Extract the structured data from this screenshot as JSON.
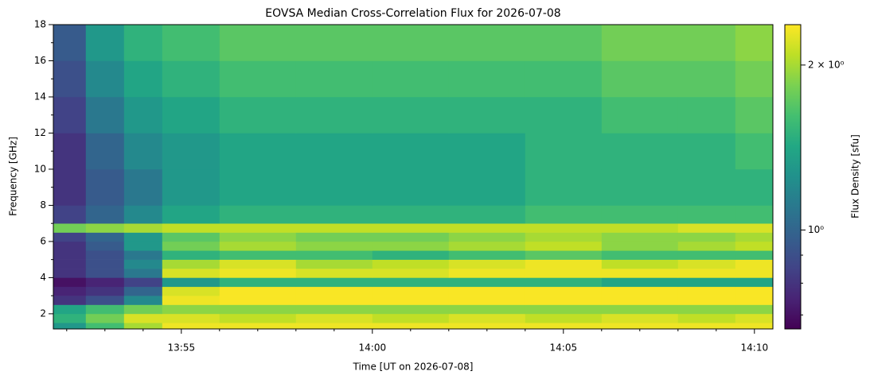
{
  "chart_data": {
    "type": "heatmap",
    "title": "EOVSA Median Cross-Correlation Flux for 2026-07-08",
    "xlabel": "Time [UT on 2026-07-08]",
    "ylabel": "Frequency [GHz]",
    "colorbar_label": "Flux Density [sfu]",
    "colormap": "viridis",
    "color_scale": "log",
    "clim": [
      0.66,
      2.37
    ],
    "cticks": [
      {
        "value": 1,
        "label": "10⁰"
      },
      {
        "value": 2,
        "label": "2 × 10⁰"
      }
    ],
    "cminorticks": [
      0.7,
      0.8,
      0.9
    ],
    "xlim": [
      "13:51:39",
      "14:10:29"
    ],
    "xticks": [
      {
        "value": "13:55:00",
        "label": "13:55"
      },
      {
        "value": "14:00:00",
        "label": "14:00"
      },
      {
        "value": "14:05:00",
        "label": "14:05"
      },
      {
        "value": "14:10:00",
        "label": "14:10"
      }
    ],
    "xminorticks": [
      "13:52:00",
      "13:53:00",
      "13:54:00",
      "13:56:00",
      "13:57:00",
      "13:58:00",
      "13:59:00",
      "14:01:00",
      "14:02:00",
      "14:03:00",
      "14:04:00",
      "14:06:00",
      "14:07:00",
      "14:08:00",
      "14:09:00"
    ],
    "ylim": [
      1.16,
      18
    ],
    "yticks": [
      2,
      4,
      6,
      8,
      10,
      12,
      14,
      16,
      18
    ],
    "yminorticks": [
      3,
      5,
      7,
      9,
      11,
      13,
      15,
      17
    ],
    "x_edges": [
      "13:51:39",
      "13:52:30",
      "13:53:30",
      "13:54:30",
      "13:56:00",
      "13:58:00",
      "14:00:00",
      "14:02:00",
      "14:04:00",
      "14:06:00",
      "14:08:00",
      "14:09:30",
      "14:10:29"
    ],
    "y_edges": [
      1.16,
      1.5,
      2,
      2.5,
      3,
      3.5,
      4,
      4.5,
      5,
      5.5,
      6,
      6.5,
      7,
      8,
      10,
      12,
      14,
      16,
      18
    ],
    "z": [
      [
        1.3,
        1.6,
        2.0,
        2.3,
        2.3,
        2.3,
        2.3,
        2.3,
        2.3,
        2.3,
        2.3,
        2.3
      ],
      [
        1.5,
        1.8,
        2.2,
        2.2,
        2.1,
        2.2,
        2.1,
        2.2,
        2.1,
        2.2,
        2.1,
        2.2
      ],
      [
        1.4,
        1.6,
        1.8,
        1.9,
        1.9,
        1.9,
        1.9,
        1.9,
        1.9,
        1.9,
        1.9,
        1.9
      ],
      [
        0.8,
        0.9,
        1.2,
        2.3,
        2.35,
        2.35,
        2.35,
        2.35,
        2.35,
        2.35,
        2.35,
        2.35
      ],
      [
        0.75,
        0.8,
        1.0,
        2.2,
        2.35,
        2.35,
        2.35,
        2.35,
        2.35,
        2.35,
        2.35,
        2.35
      ],
      [
        0.7,
        0.75,
        0.85,
        1.3,
        1.5,
        1.5,
        1.5,
        1.5,
        1.5,
        1.4,
        1.4,
        1.4
      ],
      [
        0.8,
        0.9,
        1.1,
        2.2,
        2.3,
        2.2,
        2.2,
        2.3,
        2.3,
        2.3,
        2.3,
        2.3
      ],
      [
        0.8,
        0.9,
        1.2,
        2.0,
        2.2,
        2.0,
        2.1,
        2.2,
        2.3,
        2.1,
        2.2,
        2.3
      ],
      [
        0.8,
        0.9,
        1.1,
        1.5,
        1.6,
        1.6,
        1.5,
        1.6,
        1.7,
        1.6,
        1.6,
        1.6
      ],
      [
        0.8,
        0.95,
        1.3,
        1.8,
        2.0,
        1.9,
        1.9,
        2.0,
        2.1,
        1.9,
        2.0,
        2.1
      ],
      [
        0.85,
        1.0,
        1.3,
        1.7,
        1.9,
        1.8,
        1.8,
        1.9,
        2.0,
        1.9,
        1.9,
        2.0
      ],
      [
        1.8,
        1.9,
        2.0,
        2.1,
        2.1,
        2.1,
        2.1,
        2.1,
        2.1,
        2.1,
        2.2,
        2.2
      ],
      [
        0.85,
        1.0,
        1.2,
        1.4,
        1.5,
        1.5,
        1.5,
        1.5,
        1.6,
        1.6,
        1.6,
        1.6
      ],
      [
        0.8,
        0.95,
        1.1,
        1.3,
        1.4,
        1.4,
        1.4,
        1.4,
        1.5,
        1.5,
        1.5,
        1.5
      ],
      [
        0.8,
        1.0,
        1.2,
        1.3,
        1.4,
        1.4,
        1.4,
        1.4,
        1.5,
        1.5,
        1.5,
        1.6
      ],
      [
        0.85,
        1.1,
        1.3,
        1.4,
        1.5,
        1.5,
        1.5,
        1.5,
        1.5,
        1.6,
        1.6,
        1.7
      ],
      [
        0.9,
        1.2,
        1.4,
        1.5,
        1.6,
        1.6,
        1.6,
        1.6,
        1.6,
        1.7,
        1.7,
        1.8
      ],
      [
        0.95,
        1.3,
        1.5,
        1.6,
        1.7,
        1.7,
        1.7,
        1.7,
        1.7,
        1.8,
        1.8,
        1.9
      ]
    ]
  }
}
